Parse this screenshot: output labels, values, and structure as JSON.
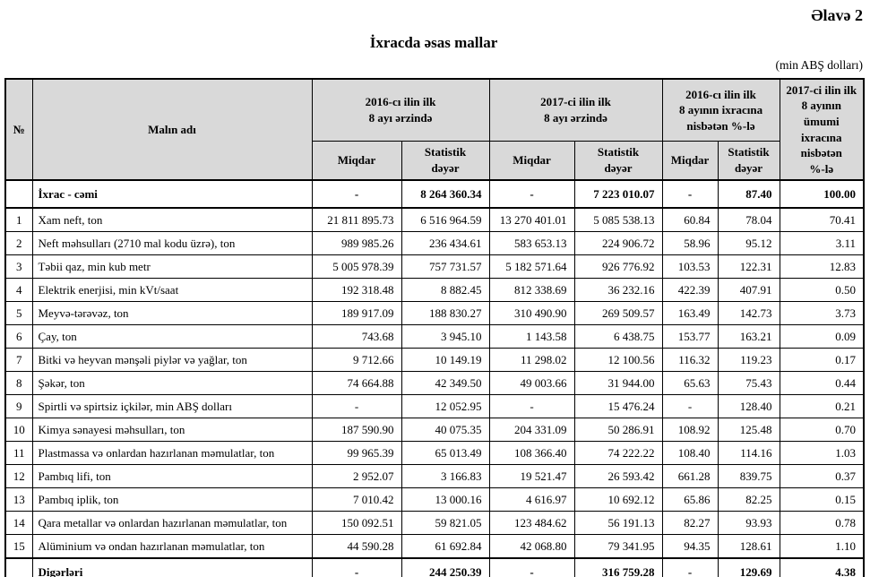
{
  "page": {
    "appendix_label": "Əlavə 2",
    "title": "İxracda əsas mallar",
    "unit_note": "(min ABŞ dolları)"
  },
  "table": {
    "header": {
      "no": "№",
      "product": "Malın adı",
      "group_2016": "2016-cı ilin ilk\n8 ayı ərzində",
      "group_2017": "2017-ci ilin ilk\n8 ayı ərzində",
      "group_ratio_2016": "2016-cı ilin ilk\n8 ayının ixracına\nnisbətən %-lə",
      "col_total_share": "2017-ci ilin ilk\n8 ayının\nümumi\nixracına\nnisbətən\n%-lə",
      "sub_quantity": "Miqdar",
      "sub_value": "Statistik\ndəyər"
    },
    "rows": [
      {
        "no": "",
        "name": "İxrac - cəmi",
        "bold": true,
        "values": [
          "-",
          "8 264 360.34",
          "-",
          "7 223 010.07",
          "-",
          "87.40",
          "100.00"
        ]
      },
      {
        "no": "1",
        "name": "Xam neft, ton",
        "bold": false,
        "values": [
          "21 811 895.73",
          "6 516 964.59",
          "13 270 401.01",
          "5 085 538.13",
          "60.84",
          "78.04",
          "70.41"
        ]
      },
      {
        "no": "2",
        "name": "Neft məhsulları (2710 mal kodu üzrə), ton",
        "bold": false,
        "values": [
          "989 985.26",
          "236 434.61",
          "583 653.13",
          "224 906.72",
          "58.96",
          "95.12",
          "3.11"
        ]
      },
      {
        "no": "3",
        "name": "Təbii qaz, min kub metr",
        "bold": false,
        "values": [
          "5 005 978.39",
          "757 731.57",
          "5 182 571.64",
          "926 776.92",
          "103.53",
          "122.31",
          "12.83"
        ]
      },
      {
        "no": "4",
        "name": "Elektrik enerjisi, min kVt/saat",
        "bold": false,
        "values": [
          "192 318.48",
          "8 882.45",
          "812 338.69",
          "36 232.16",
          "422.39",
          "407.91",
          "0.50"
        ]
      },
      {
        "no": "5",
        "name": "Meyvə-tərəvəz, ton",
        "bold": false,
        "values": [
          "189 917.09",
          "188 830.27",
          "310 490.90",
          "269 509.57",
          "163.49",
          "142.73",
          "3.73"
        ]
      },
      {
        "no": "6",
        "name": "Çay, ton",
        "bold": false,
        "values": [
          "743.68",
          "3 945.10",
          "1 143.58",
          "6 438.75",
          "153.77",
          "163.21",
          "0.09"
        ]
      },
      {
        "no": "7",
        "name": "Bitki və heyvan mənşəli piylər və yağlar, ton",
        "bold": false,
        "values": [
          "9 712.66",
          "10 149.19",
          "11 298.02",
          "12 100.56",
          "116.32",
          "119.23",
          "0.17"
        ]
      },
      {
        "no": "8",
        "name": "Şəkər, ton",
        "bold": false,
        "values": [
          "74 664.88",
          "42 349.50",
          "49 003.66",
          "31 944.00",
          "65.63",
          "75.43",
          "0.44"
        ]
      },
      {
        "no": "9",
        "name": "Spirtli və spirtsiz içkilər, min ABŞ dolları",
        "bold": false,
        "values": [
          "-",
          "12 052.95",
          "-",
          "15 476.24",
          "-",
          "128.40",
          "0.21"
        ]
      },
      {
        "no": "10",
        "name": "Kimya sənayesi məhsulları, ton",
        "bold": false,
        "values": [
          "187 590.90",
          "40 075.35",
          "204 331.09",
          "50 286.91",
          "108.92",
          "125.48",
          "0.70"
        ]
      },
      {
        "no": "11",
        "name": "Plastmassa və onlardan hazırlanan məmulatlar, ton",
        "bold": false,
        "values": [
          "99 965.39",
          "65 013.49",
          "108 366.40",
          "74 222.22",
          "108.40",
          "114.16",
          "1.03"
        ]
      },
      {
        "no": "12",
        "name": "Pambıq lifi, ton",
        "bold": false,
        "values": [
          "2 952.07",
          "3 166.83",
          "19 521.47",
          "26 593.42",
          "661.28",
          "839.75",
          "0.37"
        ]
      },
      {
        "no": "13",
        "name": "Pambıq iplik, ton",
        "bold": false,
        "values": [
          "7 010.42",
          "13 000.16",
          "4 616.97",
          "10 692.12",
          "65.86",
          "82.25",
          "0.15"
        ]
      },
      {
        "no": "14",
        "name": "Qara metallar və onlardan hazırlanan məmulatlar, ton",
        "bold": false,
        "values": [
          "150 092.51",
          "59 821.05",
          "123 484.62",
          "56 191.13",
          "82.27",
          "93.93",
          "0.78"
        ]
      },
      {
        "no": "15",
        "name": "Alüminium və ondan hazırlanan məmulatlar, ton",
        "bold": false,
        "values": [
          "44 590.28",
          "61 692.84",
          "42 068.80",
          "79 341.95",
          "94.35",
          "128.61",
          "1.10"
        ]
      },
      {
        "no": "",
        "name": "Digərləri",
        "bold": true,
        "values": [
          "-",
          "244 250.39",
          "-",
          "316 759.28",
          "-",
          "129.69",
          "4.38"
        ]
      }
    ]
  }
}
